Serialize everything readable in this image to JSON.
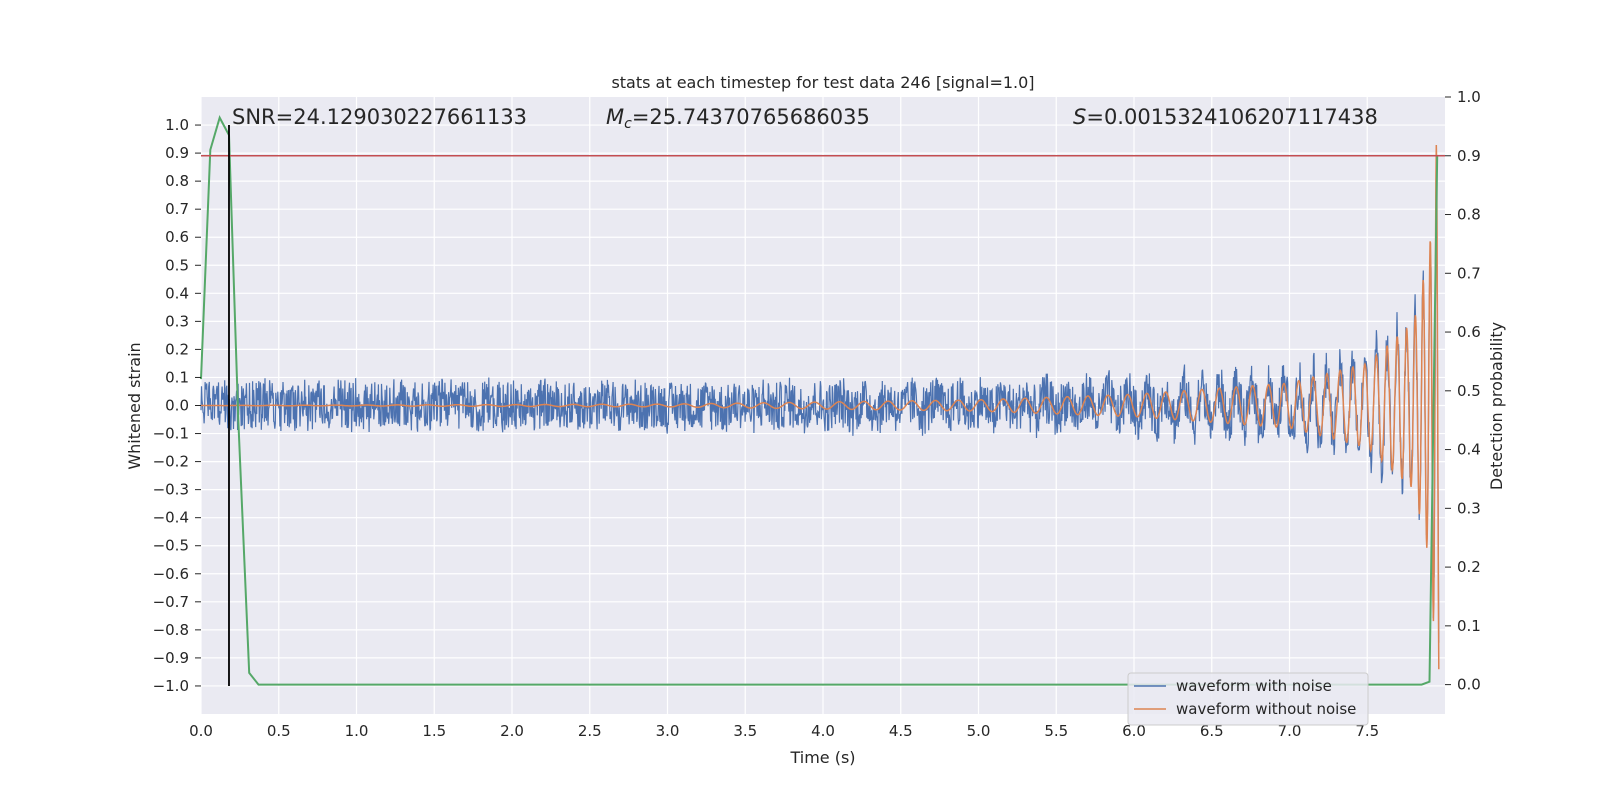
{
  "chart_data": {
    "type": "line",
    "title": "stats at each timestep for test data 246 [signal=1.0]",
    "xlabel": "Time (s)",
    "ylabel": "Whitened strain",
    "ylabel_right": "Detection probability",
    "xlim": [
      0.0,
      8.0
    ],
    "ylim": [
      -1.1,
      1.1
    ],
    "ylim_right": [
      -0.05,
      1.0
    ],
    "x_ticks": [
      "0.0",
      "0.5",
      "1.0",
      "1.5",
      "2.0",
      "2.5",
      "3.0",
      "3.5",
      "4.0",
      "4.5",
      "5.0",
      "5.5",
      "6.0",
      "6.5",
      "7.0",
      "7.5"
    ],
    "y_ticks": [
      "1.0",
      "0.9",
      "0.8",
      "0.7",
      "0.6",
      "0.5",
      "0.4",
      "0.3",
      "0.2",
      "0.1",
      "0.0",
      "−0.1",
      "−0.2",
      "−0.3",
      "−0.4",
      "−0.5",
      "−0.6",
      "−0.7",
      "−0.8",
      "−0.9",
      "−1.0"
    ],
    "y_ticks_right": [
      "1.0",
      "0.9",
      "0.8",
      "0.7",
      "0.6",
      "0.5",
      "0.4",
      "0.3",
      "0.2",
      "0.1",
      "0.0"
    ],
    "grid": true,
    "background": "#eaeaf2",
    "annotations": {
      "snr": "SNR=24.129030227661133",
      "mc_symbol": "M",
      "mc_sub": "c",
      "mc_value": "=25.74370765686035",
      "s_symbol": "S",
      "s_value": "=0.0015324106207117438"
    },
    "series": [
      {
        "name": "waveform with noise",
        "color": "#4c72b0",
        "axis": "left",
        "kind": "noisy chirp",
        "noise_amplitude": 0.1,
        "signal_amplitude_at_x": [
          [
            0.0,
            0.0
          ],
          [
            3.0,
            0.005
          ],
          [
            5.0,
            0.02
          ],
          [
            6.0,
            0.04
          ],
          [
            7.0,
            0.08
          ],
          [
            7.5,
            0.15
          ],
          [
            7.8,
            0.3
          ],
          [
            7.9,
            0.55
          ],
          [
            7.95,
            0.9
          ]
        ]
      },
      {
        "name": "waveform without noise",
        "color": "#dd8452",
        "axis": "left",
        "kind": "chirp",
        "amplitude_at_x": [
          [
            0.0,
            0.0
          ],
          [
            3.0,
            0.005
          ],
          [
            5.0,
            0.02
          ],
          [
            6.0,
            0.04
          ],
          [
            7.0,
            0.08
          ],
          [
            7.5,
            0.15
          ],
          [
            7.8,
            0.3
          ],
          [
            7.9,
            0.55
          ],
          [
            7.95,
            0.98
          ]
        ]
      },
      {
        "color": "#55a868",
        "axis": "right",
        "x": [
          0.0,
          0.06,
          0.12,
          0.18,
          0.24,
          0.31,
          0.37,
          0.5,
          1.0,
          2.0,
          3.0,
          4.0,
          5.0,
          6.0,
          7.0,
          7.5,
          7.85,
          7.9,
          7.95
        ],
        "y": [
          0.52,
          0.91,
          0.965,
          0.935,
          0.45,
          0.02,
          0.0,
          0.0,
          0.0,
          0.0,
          0.0,
          0.0,
          0.0,
          0.0,
          0.0,
          0.0,
          0.0,
          0.005,
          0.9
        ]
      }
    ],
    "vlines": [
      {
        "x": 0.18,
        "ymin": -1.0,
        "ymax": 1.0,
        "color": "#000000"
      }
    ],
    "hlines": [
      {
        "y": 0.9,
        "axis": "right",
        "color": "#c44e52"
      }
    ],
    "legend": {
      "position": "lower-right",
      "entries": [
        {
          "label": "waveform with noise",
          "color": "#4c72b0"
        },
        {
          "label": "waveform without noise",
          "color": "#dd8452"
        }
      ]
    }
  }
}
